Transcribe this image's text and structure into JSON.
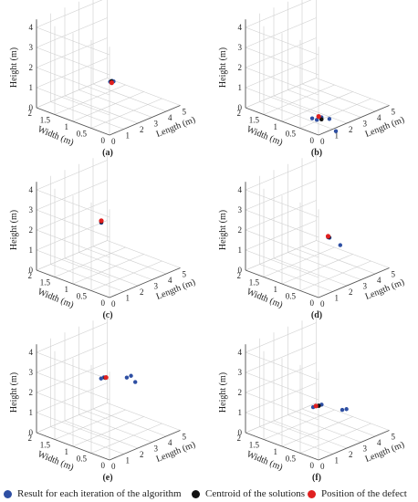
{
  "colors": {
    "iteration": "#2e4fa3",
    "centroid": "#111111",
    "defect": "#e02020",
    "grid": "#cfcfcf",
    "axis": "#555555"
  },
  "legend": {
    "iteration": "Result for each iteration of the algorithm",
    "centroid": "Centroid of the solutions",
    "defect": "Position of the defect"
  },
  "chart_data": [
    {
      "type": "scatter",
      "subplot": "(a)",
      "xlabel": "Length (m)",
      "ylabel": "Width (m)",
      "zlabel": "Height (m)",
      "xlim": [
        0,
        5
      ],
      "ylim": [
        0,
        2
      ],
      "zlim": [
        0,
        4
      ],
      "xticks": [
        0,
        1,
        2,
        3,
        4,
        5
      ],
      "yticks": [
        0,
        0.5,
        1,
        1.5,
        2
      ],
      "zticks": [
        0,
        1,
        2,
        3,
        4
      ],
      "grid": true,
      "series": [
        {
          "role": "iteration",
          "points": [
            [
              0.3,
              0.1,
              2.5
            ],
            [
              0.6,
              0.15,
              2.4
            ],
            [
              0.7,
              0.2,
              2.35
            ],
            [
              0.8,
              0.2,
              2.3
            ]
          ]
        },
        {
          "role": "centroid",
          "points": [
            [
              0.65,
              0.2,
              2.35
            ]
          ]
        },
        {
          "role": "defect",
          "points": [
            [
              0.8,
              0.25,
              2.2
            ]
          ]
        }
      ]
    },
    {
      "type": "scatter",
      "subplot": "(b)",
      "xlabel": "Length (m)",
      "ylabel": "Width (m)",
      "zlabel": "Height (m)",
      "xlim": [
        0,
        5
      ],
      "ylim": [
        0,
        2
      ],
      "zlim": [
        0,
        4
      ],
      "xticks": [
        0,
        1,
        2,
        3,
        4,
        5
      ],
      "yticks": [
        0,
        0.5,
        1,
        1.5,
        2
      ],
      "zticks": [
        0,
        1,
        2,
        3,
        4
      ],
      "grid": true,
      "series": [
        {
          "role": "iteration",
          "points": [
            [
              1.1,
              0.6,
              0.1
            ],
            [
              1.5,
              0.5,
              0.1
            ],
            [
              1.3,
              0.55,
              0.0
            ],
            [
              1.8,
              0.4,
              0.0
            ],
            [
              2.0,
              0.3,
              -0.6
            ]
          ]
        },
        {
          "role": "centroid",
          "points": [
            [
              1.5,
              0.5,
              0.0
            ]
          ]
        },
        {
          "role": "defect",
          "points": [
            [
              1.3,
              0.5,
              0.2
            ]
          ]
        }
      ]
    },
    {
      "type": "scatter",
      "subplot": "(c)",
      "xlabel": "Length (m)",
      "ylabel": "Width (m)",
      "zlabel": "Height (m)",
      "xlim": [
        0,
        5
      ],
      "ylim": [
        0,
        2
      ],
      "zlim": [
        0,
        4
      ],
      "xticks": [
        0,
        1,
        2,
        3,
        4,
        5
      ],
      "yticks": [
        0,
        0.5,
        1,
        1.5,
        2
      ],
      "zticks": [
        0,
        1,
        2,
        3,
        4
      ],
      "grid": true,
      "series": [
        {
          "role": "iteration",
          "points": [
            [
              2.0,
              1.0,
              2.5
            ],
            [
              2.0,
              1.0,
              2.45
            ]
          ]
        },
        {
          "role": "centroid",
          "points": [
            [
              2.0,
              1.0,
              2.5
            ]
          ]
        },
        {
          "role": "defect",
          "points": [
            [
              2.0,
              1.0,
              2.55
            ]
          ]
        }
      ]
    },
    {
      "type": "scatter",
      "subplot": "(d)",
      "xlabel": "Length (m)",
      "ylabel": "Width (m)",
      "zlabel": "Height (m)",
      "xlim": [
        0,
        5
      ],
      "ylim": [
        0,
        2
      ],
      "zlim": [
        0,
        4
      ],
      "xticks": [
        0,
        1,
        2,
        3,
        4,
        5
      ],
      "yticks": [
        0,
        0.5,
        1,
        1.5,
        2
      ],
      "zticks": [
        0,
        1,
        2,
        3,
        4
      ],
      "grid": true,
      "series": [
        {
          "role": "iteration",
          "points": [
            [
              3.0,
              0.9,
              1.5
            ],
            [
              3.1,
              0.9,
              1.45
            ],
            [
              3.6,
              0.8,
              1.0
            ]
          ]
        },
        {
          "role": "centroid",
          "points": [
            [
              3.05,
              0.9,
              1.5
            ]
          ]
        },
        {
          "role": "defect",
          "points": [
            [
              3.0,
              0.9,
              1.55
            ]
          ]
        }
      ]
    },
    {
      "type": "scatter",
      "subplot": "(e)",
      "xlabel": "Length (m)",
      "ylabel": "Width (m)",
      "zlabel": "Height (m)",
      "xlim": [
        0,
        5
      ],
      "ylim": [
        0,
        2
      ],
      "zlim": [
        0,
        4
      ],
      "xticks": [
        0,
        1,
        2,
        3,
        4,
        5
      ],
      "yticks": [
        0,
        0.5,
        1,
        1.5,
        2
      ],
      "zticks": [
        0,
        1,
        2,
        3,
        4
      ],
      "grid": true,
      "series": [
        {
          "role": "iteration",
          "points": [
            [
              2.5,
              1.2,
              2.5
            ],
            [
              2.7,
              1.2,
              2.5
            ],
            [
              3.8,
              1.0,
              2.3
            ],
            [
              4.1,
              1.0,
              2.3
            ],
            [
              4.4,
              1.0,
              1.9
            ]
          ]
        },
        {
          "role": "centroid",
          "points": [
            [
              2.8,
              1.2,
              2.45
            ]
          ]
        },
        {
          "role": "defect",
          "points": [
            [
              2.85,
              1.2,
              2.45
            ]
          ]
        }
      ]
    },
    {
      "type": "scatter",
      "subplot": "(f)",
      "xlabel": "Length (m)",
      "ylabel": "Width (m)",
      "zlabel": "Height (m)",
      "xlim": [
        0,
        5
      ],
      "ylim": [
        0,
        2
      ],
      "zlim": [
        0,
        4
      ],
      "xticks": [
        0,
        1,
        2,
        3,
        4,
        5
      ],
      "yticks": [
        0,
        0.5,
        1,
        1.5,
        2
      ],
      "zticks": [
        0,
        1,
        2,
        3,
        4
      ],
      "grid": true,
      "series": [
        {
          "role": "iteration",
          "points": [
            [
              2.2,
              1.0,
              1.3
            ],
            [
              2.4,
              1.0,
              1.3
            ],
            [
              2.6,
              1.0,
              1.25
            ],
            [
              2.8,
              1.0,
              1.25
            ],
            [
              4.0,
              0.9,
              0.7
            ],
            [
              4.3,
              0.9,
              0.65
            ]
          ]
        },
        {
          "role": "centroid",
          "points": [
            [
              2.6,
              1.0,
              1.25
            ]
          ]
        },
        {
          "role": "defect",
          "points": [
            [
              2.4,
              1.0,
              1.3
            ]
          ]
        }
      ]
    }
  ]
}
